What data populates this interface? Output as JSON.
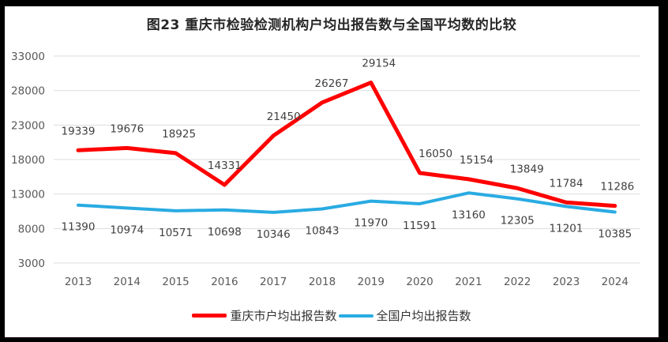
{
  "chart_data": {
    "type": "line",
    "title": "图23 重庆市检验检测机构户均出报告数与全国平均数的比较",
    "categories": [
      "2013",
      "2014",
      "2015",
      "2016",
      "2017",
      "2018",
      "2019",
      "2020",
      "2021",
      "2022",
      "2023",
      "2024"
    ],
    "series": [
      {
        "name": "重庆市户均出报告数",
        "color": "#FF0000",
        "stroke_width": 5,
        "label_position": "above",
        "values": [
          19339,
          19676,
          18925,
          14331,
          21450,
          26267,
          29154,
          16050,
          15154,
          13849,
          11784,
          11286
        ],
        "label_dx": [
          0,
          0,
          4,
          0,
          13,
          12,
          10,
          20,
          10,
          12,
          0,
          3
        ]
      },
      {
        "name": "全国户均出报告数",
        "color": "#29ABE2",
        "stroke_width": 4,
        "label_position": "below",
        "values": [
          11390,
          10974,
          10571,
          10698,
          10346,
          10843,
          11970,
          11591,
          13160,
          12305,
          11201,
          10385
        ],
        "label_dx": [
          0,
          0,
          0,
          0,
          0,
          0,
          0,
          0,
          0,
          0,
          0,
          0
        ]
      }
    ],
    "ylim": [
      3000,
      33000
    ],
    "yticks": [
      33000,
      28000,
      23000,
      18000,
      13000,
      8000,
      3000
    ],
    "grid": "horizontal",
    "legend_position": "bottom",
    "style": {
      "grid_color": "#DDDDDD",
      "tick_color": "#595959",
      "label_color": "#3F3F3F",
      "title_color": "#262626",
      "legend_text_color": "#333333",
      "background": "#FFFFFF",
      "frame_color": "#000000"
    }
  }
}
